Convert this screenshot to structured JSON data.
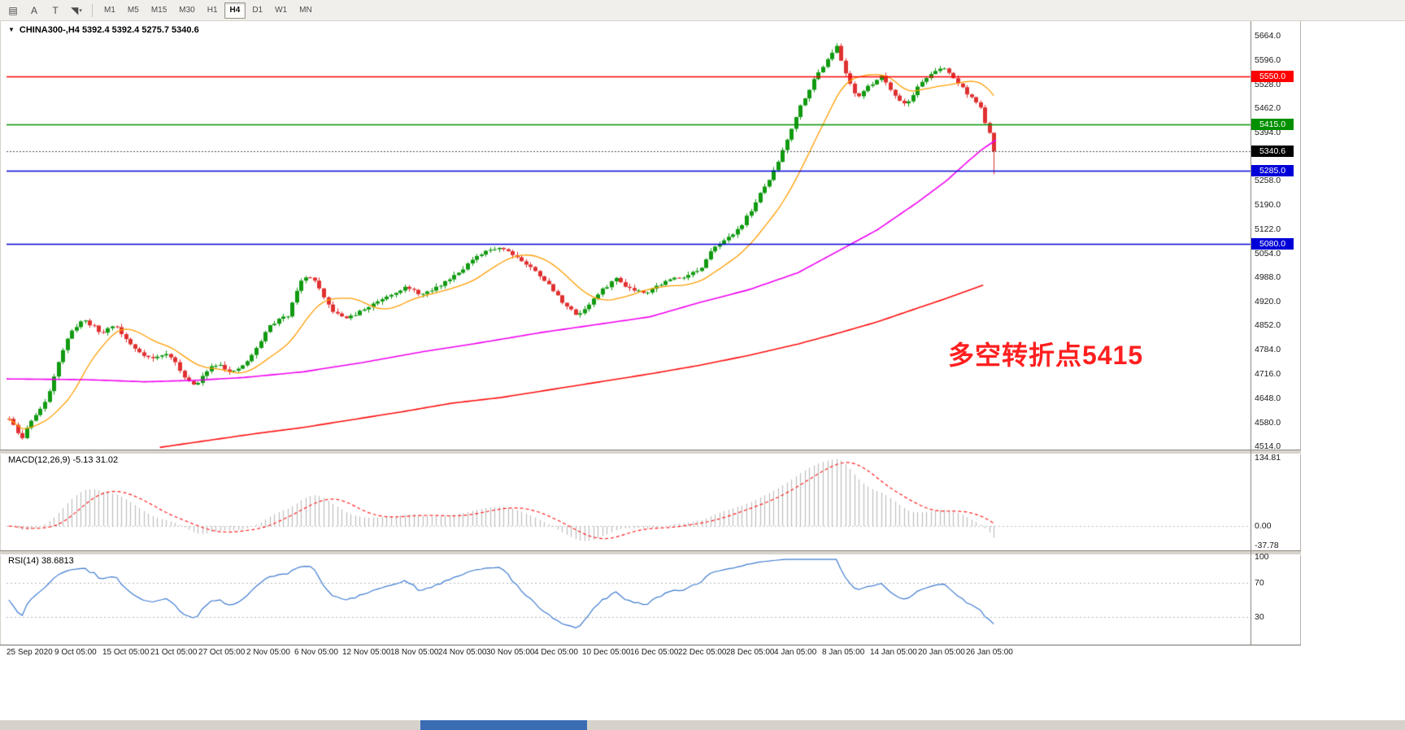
{
  "toolbar": {
    "tools": [
      {
        "name": "chart-list-icon",
        "glyph": "▤"
      },
      {
        "name": "annotation-letter-icon",
        "glyph": "A"
      },
      {
        "name": "text-tool-icon",
        "glyph": "T"
      },
      {
        "name": "arrow-tools-icon",
        "glyph": "◥",
        "chevron": "▾"
      }
    ],
    "timeframes": [
      "M1",
      "M5",
      "M15",
      "M30",
      "H1",
      "H4",
      "D1",
      "W1",
      "MN"
    ],
    "active_timeframe": "H4"
  },
  "chart_data": {
    "type": "candlestick",
    "symbol": "CHINA300-",
    "timeframe": "H4",
    "header": "CHINA300-,H4 5392.4 5392.4 5275.7 5340.6",
    "current_bar": {
      "open": 5392.4,
      "high": 5392.4,
      "low": 5275.7,
      "close": 5340.6
    },
    "bid": {
      "price": 5340.6,
      "label": "5340.6",
      "line_color": "#4d4d4d",
      "badge_color": "#000000"
    },
    "price_axis": {
      "min": 4504,
      "max": 5678,
      "labels": [
        "5664.0",
        "5596.0",
        "5528.0",
        "5462.0",
        "5394.0",
        "5258.0",
        "5190.0",
        "5122.0",
        "5054.0",
        "4988.0",
        "4920.0",
        "4852.0",
        "4784.0",
        "4716.0",
        "4648.0",
        "4580.0",
        "4514.0"
      ]
    },
    "h_lines": [
      {
        "price": 5550.0,
        "label": "5550.0",
        "color": "#ff0000"
      },
      {
        "price": 5415.0,
        "label": "5415.0",
        "color": "#009000"
      },
      {
        "price": 5285.0,
        "label": "5285.0",
        "color": "#0000d8"
      },
      {
        "price": 5080.0,
        "label": "5080.0",
        "color": "#0000d8"
      }
    ],
    "annotation": {
      "text": "多空转折点5415",
      "color": "#ff1f1f"
    },
    "candles": {
      "count": 220,
      "seed": 11,
      "noise": 9,
      "up_color": "#119a11",
      "down_color": "#e03030",
      "close_path": [
        [
          0.0,
          4590
        ],
        [
          0.008,
          4555
        ],
        [
          0.013,
          4532
        ],
        [
          0.022,
          4585
        ],
        [
          0.03,
          4610
        ],
        [
          0.038,
          4640
        ],
        [
          0.048,
          4735
        ],
        [
          0.057,
          4800
        ],
        [
          0.066,
          4845
        ],
        [
          0.075,
          4868
        ],
        [
          0.085,
          4852
        ],
        [
          0.094,
          4828
        ],
        [
          0.101,
          4845
        ],
        [
          0.107,
          4856
        ],
        [
          0.117,
          4818
        ],
        [
          0.126,
          4790
        ],
        [
          0.136,
          4772
        ],
        [
          0.145,
          4758
        ],
        [
          0.155,
          4768
        ],
        [
          0.163,
          4772
        ],
        [
          0.17,
          4740
        ],
        [
          0.176,
          4716
        ],
        [
          0.183,
          4695
        ],
        [
          0.189,
          4680
        ],
        [
          0.196,
          4706
        ],
        [
          0.201,
          4728
        ],
        [
          0.208,
          4742
        ],
        [
          0.214,
          4746
        ],
        [
          0.22,
          4730
        ],
        [
          0.226,
          4716
        ],
        [
          0.236,
          4736
        ],
        [
          0.245,
          4760
        ],
        [
          0.255,
          4806
        ],
        [
          0.264,
          4850
        ],
        [
          0.274,
          4868
        ],
        [
          0.283,
          4880
        ],
        [
          0.289,
          4930
        ],
        [
          0.295,
          4972
        ],
        [
          0.302,
          4986
        ],
        [
          0.308,
          4990
        ],
        [
          0.315,
          4952
        ],
        [
          0.321,
          4920
        ],
        [
          0.327,
          4898
        ],
        [
          0.333,
          4882
        ],
        [
          0.34,
          4876
        ],
        [
          0.346,
          4874
        ],
        [
          0.356,
          4890
        ],
        [
          0.365,
          4904
        ],
        [
          0.374,
          4920
        ],
        [
          0.383,
          4934
        ],
        [
          0.393,
          4948
        ],
        [
          0.402,
          4958
        ],
        [
          0.411,
          4948
        ],
        [
          0.421,
          4938
        ],
        [
          0.43,
          4952
        ],
        [
          0.44,
          4968
        ],
        [
          0.45,
          4990
        ],
        [
          0.459,
          5008
        ],
        [
          0.468,
          5030
        ],
        [
          0.478,
          5048
        ],
        [
          0.488,
          5064
        ],
        [
          0.497,
          5072
        ],
        [
          0.503,
          5066
        ],
        [
          0.509,
          5058
        ],
        [
          0.516,
          5044
        ],
        [
          0.522,
          5030
        ],
        [
          0.528,
          5018
        ],
        [
          0.534,
          5004
        ],
        [
          0.541,
          4988
        ],
        [
          0.547,
          4968
        ],
        [
          0.557,
          4934
        ],
        [
          0.566,
          4906
        ],
        [
          0.572,
          4890
        ],
        [
          0.578,
          4882
        ],
        [
          0.585,
          4900
        ],
        [
          0.591,
          4918
        ],
        [
          0.597,
          4936
        ],
        [
          0.603,
          4952
        ],
        [
          0.61,
          4970
        ],
        [
          0.616,
          4984
        ],
        [
          0.622,
          4972
        ],
        [
          0.629,
          4958
        ],
        [
          0.638,
          4950
        ],
        [
          0.647,
          4946
        ],
        [
          0.656,
          4960
        ],
        [
          0.666,
          4974
        ],
        [
          0.675,
          4984
        ],
        [
          0.685,
          4990
        ],
        [
          0.694,
          5000
        ],
        [
          0.704,
          5012
        ],
        [
          0.71,
          5046
        ],
        [
          0.717,
          5078
        ],
        [
          0.723,
          5086
        ],
        [
          0.729,
          5092
        ],
        [
          0.735,
          5110
        ],
        [
          0.742,
          5128
        ],
        [
          0.748,
          5152
        ],
        [
          0.754,
          5178
        ],
        [
          0.76,
          5208
        ],
        [
          0.767,
          5240
        ],
        [
          0.773,
          5268
        ],
        [
          0.779,
          5298
        ],
        [
          0.785,
          5342
        ],
        [
          0.792,
          5388
        ],
        [
          0.798,
          5432
        ],
        [
          0.805,
          5476
        ],
        [
          0.811,
          5508
        ],
        [
          0.817,
          5538
        ],
        [
          0.823,
          5566
        ],
        [
          0.83,
          5596
        ],
        [
          0.835,
          5618
        ],
        [
          0.84,
          5634
        ],
        [
          0.844,
          5600
        ],
        [
          0.849,
          5562
        ],
        [
          0.855,
          5524
        ],
        [
          0.861,
          5492
        ],
        [
          0.867,
          5508
        ],
        [
          0.874,
          5524
        ],
        [
          0.88,
          5540
        ],
        [
          0.886,
          5552
        ],
        [
          0.892,
          5528
        ],
        [
          0.899,
          5500
        ],
        [
          0.905,
          5482
        ],
        [
          0.911,
          5470
        ],
        [
          0.917,
          5498
        ],
        [
          0.924,
          5526
        ],
        [
          0.93,
          5544
        ],
        [
          0.936,
          5558
        ],
        [
          0.942,
          5566
        ],
        [
          0.949,
          5574
        ],
        [
          0.955,
          5558
        ],
        [
          0.961,
          5540
        ],
        [
          0.967,
          5520
        ],
        [
          0.974,
          5500
        ],
        [
          0.98,
          5482
        ],
        [
          0.985,
          5470
        ],
        [
          0.99,
          5430
        ],
        [
          0.995,
          5392
        ],
        [
          1.0,
          5340.6
        ]
      ]
    },
    "moving_averages": [
      {
        "name": "ma-fast",
        "color": "#ff9d00",
        "mode": "sma",
        "period": 14
      },
      {
        "name": "ma-mid",
        "color": "#f000f0",
        "mode": "path",
        "path": [
          [
            0.0,
            4702
          ],
          [
            0.08,
            4700
          ],
          [
            0.14,
            4694
          ],
          [
            0.19,
            4698
          ],
          [
            0.24,
            4706
          ],
          [
            0.3,
            4722
          ],
          [
            0.36,
            4748
          ],
          [
            0.42,
            4778
          ],
          [
            0.48,
            4804
          ],
          [
            0.54,
            4832
          ],
          [
            0.6,
            4856
          ],
          [
            0.65,
            4876
          ],
          [
            0.7,
            4916
          ],
          [
            0.75,
            4952
          ],
          [
            0.8,
            5000
          ],
          [
            0.84,
            5060
          ],
          [
            0.88,
            5120
          ],
          [
            0.92,
            5196
          ],
          [
            0.95,
            5258
          ],
          [
            0.97,
            5308
          ],
          [
            0.985,
            5344
          ],
          [
            1.0,
            5372
          ]
        ]
      },
      {
        "name": "ma-slow",
        "color": "#ff1010",
        "mode": "path",
        "path": [
          [
            0.155,
            4510
          ],
          [
            0.2,
            4528
          ],
          [
            0.25,
            4548
          ],
          [
            0.3,
            4566
          ],
          [
            0.35,
            4588
          ],
          [
            0.4,
            4610
          ],
          [
            0.45,
            4634
          ],
          [
            0.5,
            4650
          ],
          [
            0.55,
            4672
          ],
          [
            0.6,
            4694
          ],
          [
            0.65,
            4716
          ],
          [
            0.7,
            4740
          ],
          [
            0.75,
            4768
          ],
          [
            0.8,
            4800
          ],
          [
            0.84,
            4830
          ],
          [
            0.88,
            4862
          ],
          [
            0.92,
            4900
          ],
          [
            0.95,
            4928
          ],
          [
            0.98,
            4958
          ],
          [
            0.99,
            4968
          ]
        ]
      }
    ],
    "x_labels": [
      "25 Sep 2020",
      "9 Oct 05:00",
      "15 Oct 05:00",
      "21 Oct 05:00",
      "27 Oct 05:00",
      "2 Nov 05:00",
      "6 Nov 05:00",
      "12 Nov 05:00",
      "18 Nov 05:00",
      "24 Nov 05:00",
      "30 Nov 05:00",
      "4 Dec 05:00",
      "10 Dec 05:00",
      "16 Dec 05:00",
      "22 Dec 05:00",
      "28 Dec 05:00",
      "4 Jan 05:00",
      "8 Jan 05:00",
      "14 Jan 05:00",
      "20 Jan 05:00",
      "26 Jan 05:00"
    ],
    "indicators": {
      "macd": {
        "label": "MACD(12,26,9) -5.13 31.02",
        "fast": 12,
        "slow": 26,
        "signal": 9,
        "axis_labels": [
          "134.81",
          "0.00",
          "-37.78"
        ],
        "scale": {
          "min": -48,
          "max": 145
        },
        "hist_color": "#bdbdbd",
        "signal_color": "#ff2020"
      },
      "rsi": {
        "label": "RSI(14) 38.6813",
        "period": 14,
        "axis_labels": [
          "100",
          "70",
          "30"
        ],
        "levels": [
          70,
          30
        ],
        "scale": {
          "min": 0,
          "max": 100
        },
        "line_color": "#3e7bd0"
      }
    }
  },
  "bottom_bar": {
    "color": "#d6d2cb",
    "accent_color": "#3a6cb4"
  }
}
